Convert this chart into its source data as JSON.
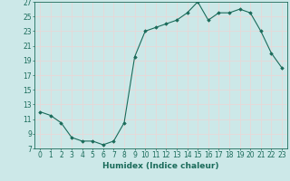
{
  "x": [
    0,
    1,
    2,
    3,
    4,
    5,
    6,
    7,
    8,
    9,
    10,
    11,
    12,
    13,
    14,
    15,
    16,
    17,
    18,
    19,
    20,
    21,
    22,
    23
  ],
  "y": [
    12,
    11.5,
    10.5,
    8.5,
    8,
    8,
    7.5,
    8,
    10.5,
    19.5,
    23,
    23.5,
    24,
    24.5,
    25.5,
    27,
    24.5,
    25.5,
    25.5,
    26,
    25.5,
    23,
    20,
    18
  ],
  "line_color": "#1a6b5a",
  "marker": "D",
  "marker_size": 1.8,
  "bg_color": "#cce8e8",
  "grid_color": "#e8d8d8",
  "xlabel": "Humidex (Indice chaleur)",
  "xlabel_fontsize": 6.5,
  "tick_fontsize": 5.5,
  "ylim": [
    7,
    27
  ],
  "xlim": [
    -0.5,
    23.5
  ],
  "yticks": [
    7,
    9,
    11,
    13,
    15,
    17,
    19,
    21,
    23,
    25,
    27
  ],
  "xticks": [
    0,
    1,
    2,
    3,
    4,
    5,
    6,
    7,
    8,
    9,
    10,
    11,
    12,
    13,
    14,
    15,
    16,
    17,
    18,
    19,
    20,
    21,
    22,
    23
  ]
}
